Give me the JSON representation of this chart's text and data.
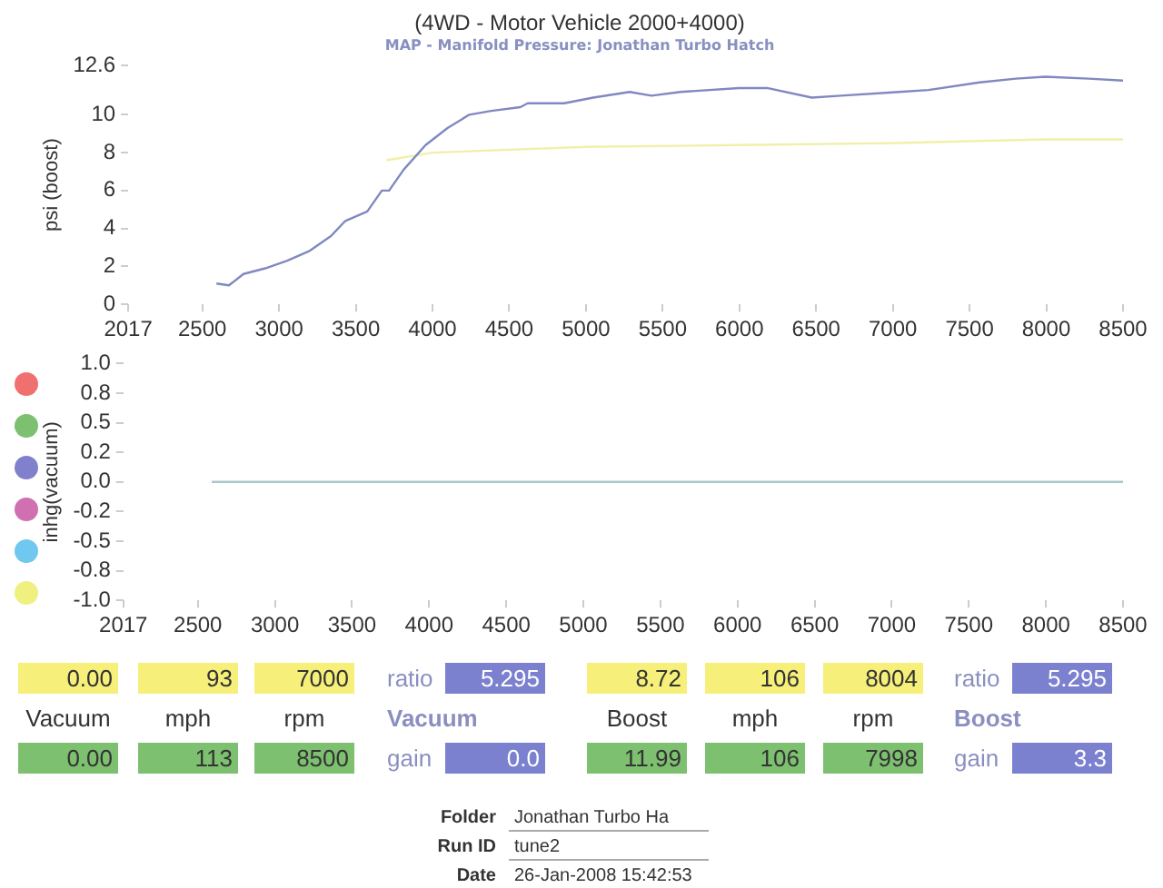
{
  "chart_data": [
    {
      "type": "line",
      "title": "(4WD - Motor Vehicle 2000+4000)",
      "subtitle": "MAP - Manifold Pressure: Jonathan Turbo Hatch",
      "ylabel": "psi (boost)",
      "xlim": [
        2017,
        8500
      ],
      "xticks": [
        2017,
        2500,
        3000,
        3500,
        4000,
        4500,
        5000,
        5500,
        6000,
        6500,
        7000,
        7500,
        8000,
        8500
      ],
      "ylim": [
        0,
        12.6
      ],
      "yticks": [
        0,
        2,
        4,
        6,
        8,
        10,
        12.6
      ],
      "grid": false,
      "marker": "none",
      "series": [
        {
          "color": "#8088c0",
          "x": [
            2592,
            2673,
            2768,
            2910,
            3053,
            3195,
            3338,
            3432,
            3575,
            3670,
            3717,
            3812,
            3955,
            4098,
            4240,
            4383,
            4573,
            4620,
            4858,
            5047,
            5285,
            5427,
            5617,
            5997,
            6187,
            6472,
            6662,
            7042,
            7232,
            7565,
            7802,
            7992,
            8277,
            8500
          ],
          "values": [
            1.1,
            1.0,
            1.6,
            1.9,
            2.3,
            2.8,
            3.6,
            4.4,
            4.9,
            6.0,
            6.0,
            7.1,
            8.4,
            9.3,
            10.0,
            10.2,
            10.4,
            10.6,
            10.6,
            10.9,
            11.2,
            11.0,
            11.2,
            11.4,
            11.4,
            10.9,
            11.0,
            11.2,
            11.3,
            11.7,
            11.9,
            12.0,
            11.9,
            11.8
          ]
        },
        {
          "color": "#f0f0a8",
          "x": [
            3700,
            4000,
            5000,
            6000,
            7000,
            8000,
            8500
          ],
          "values": [
            7.6,
            8.0,
            8.3,
            8.4,
            8.5,
            8.7,
            8.7
          ]
        }
      ]
    },
    {
      "type": "line",
      "ylabel": "inhg(vacuum)",
      "xlim": [
        2017,
        8500
      ],
      "xticks": [
        2017,
        2500,
        3000,
        3500,
        4000,
        4500,
        5000,
        5500,
        6000,
        6500,
        7000,
        7500,
        8000,
        8500
      ],
      "ylim": [
        -1,
        1
      ],
      "yticks": [
        {
          "value": 1,
          "label": "1.0"
        },
        {
          "value": 0.75,
          "label": "0.8"
        },
        {
          "value": 0.5,
          "label": "0.5"
        },
        {
          "value": 0.25,
          "label": "0.2"
        },
        {
          "value": 0,
          "label": "0.0"
        },
        {
          "value": -0.25,
          "label": "-0.2"
        },
        {
          "value": -0.5,
          "label": "-0.5"
        },
        {
          "value": -0.75,
          "label": "-0.8"
        },
        {
          "value": -1,
          "label": "-1.0"
        }
      ],
      "grid": false,
      "marker": "none",
      "series": [
        {
          "color": "#a8c8cc",
          "x": [
            2590,
            8500
          ],
          "values": [
            0,
            0
          ]
        }
      ],
      "annotations": [
        "0.00",
        "93",
        "7000",
        "ratio",
        "5.295",
        "8.72",
        "106",
        "8004",
        "ratio",
        "5.295",
        "Vacuum",
        "mph",
        "rpm",
        "Vacuum",
        "Boost",
        "mph",
        "rpm",
        "Boost",
        "0.00",
        "113",
        "8500",
        "gain",
        "0.0",
        "11.99",
        "106",
        "7998",
        "gain",
        "3.3",
        "Folder",
        "Jonathan Turbo Ha",
        "Run ID",
        "tune2",
        "Date",
        "26-Jan-2008  15:42:53"
      ]
    }
  ]
}
